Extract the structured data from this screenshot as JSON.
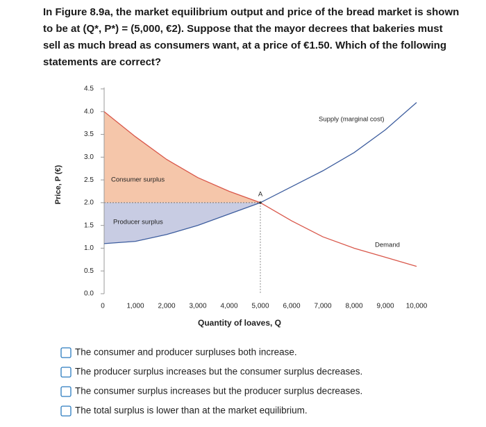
{
  "question": {
    "lines": [
      "In Figure 8.9a, the market equilibrium output and price of the bread market is shown",
      "to be at (Q*, P*) = (5,000, €2). Suppose that the mayor decrees that bakeries must",
      "sell as much bread as consumers want, at a price of €1.50. Which of the following",
      "statements are correct?"
    ]
  },
  "chart_data": {
    "type": "line",
    "x_label": "Quantity of loaves, Q",
    "y_label": "Price, P (€)",
    "x": [
      0,
      1000,
      2000,
      3000,
      4000,
      5000,
      6000,
      7000,
      8000,
      9000,
      10000
    ],
    "series": [
      {
        "name": "Supply (marginal cost)",
        "color": "#3d5d9e",
        "values": [
          1.1,
          1.15,
          1.3,
          1.5,
          1.75,
          2.0,
          2.35,
          2.7,
          3.1,
          3.6,
          4.2
        ]
      },
      {
        "name": "Demand",
        "color": "#d9574a",
        "values": [
          4.0,
          3.45,
          2.95,
          2.55,
          2.25,
          2.0,
          1.6,
          1.25,
          1.0,
          0.8,
          0.6
        ]
      }
    ],
    "equilibrium": {
      "label": "A",
      "x": 5000,
      "y": 2
    },
    "areas": [
      {
        "name": "Consumer surplus",
        "color": "#f5c6aa"
      },
      {
        "name": "Producer surplus",
        "color": "#c8cce3"
      }
    ],
    "xlim": [
      0,
      10000
    ],
    "xticks": [
      0,
      {
        "value": 1000,
        "label": "1,000"
      },
      {
        "value": 2000,
        "label": "2,000"
      },
      {
        "value": 3000,
        "label": "3,000"
      },
      {
        "value": 4000,
        "label": "4,000"
      },
      {
        "value": 5000,
        "label": "5,000"
      },
      {
        "value": 6000,
        "label": "6,000"
      },
      {
        "value": 7000,
        "label": "7,000"
      },
      {
        "value": 8000,
        "label": "8,000"
      },
      {
        "value": 9000,
        "label": "9,000"
      },
      {
        "value": 10000,
        "label": "10,000"
      }
    ],
    "ylim": [
      0,
      4.5
    ],
    "yticks": [
      {
        "value": 0,
        "label": "0.0"
      },
      0.5,
      {
        "value": 1,
        "label": "1.0"
      },
      1.5,
      {
        "value": 2,
        "label": "2.0"
      },
      2.5,
      {
        "value": 3,
        "label": "3.0"
      },
      3.5,
      {
        "value": 4,
        "label": "4.0"
      },
      4.5
    ]
  },
  "options": [
    "The consumer and producer surpluses both increase.",
    "The producer surplus increases but the consumer surplus decreases.",
    "The consumer surplus increases but the producer surplus decreases.",
    "The total surplus is lower than at the market equilibrium."
  ]
}
